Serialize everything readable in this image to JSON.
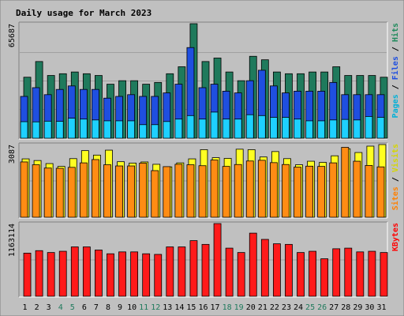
{
  "chart_data": {
    "type": "bar",
    "title": "Daily usage for March 2023",
    "days": [
      "1",
      "2",
      "3",
      "4",
      "5",
      "6",
      "7",
      "8",
      "9",
      "10",
      "11",
      "12",
      "13",
      "14",
      "15",
      "16",
      "17",
      "18",
      "19",
      "20",
      "21",
      "22",
      "23",
      "24",
      "25",
      "26",
      "27",
      "28",
      "29",
      "30",
      "31"
    ],
    "weekend_days": [
      "4",
      "5",
      "11",
      "12",
      "18",
      "19",
      "25",
      "26"
    ],
    "panels": [
      {
        "name": "hits-files-pages",
        "max_label": "65687",
        "ymax": 65687,
        "right_label_parts": [
          {
            "text": "Pages",
            "color": "#00b0d8"
          },
          {
            "text": " / ",
            "color": "#000000"
          },
          {
            "text": "Files",
            "color": "#1f4fe0"
          },
          {
            "text": " / ",
            "color": "#000000"
          },
          {
            "text": "Hits",
            "color": "#1f8a5c"
          }
        ],
        "series": [
          {
            "name": "Hits",
            "color": "#1f7a5c",
            "values": [
              35000,
              44000,
              36000,
              37000,
              38000,
              37000,
              36000,
              31000,
              33000,
              33000,
              31000,
              32000,
              37000,
              41000,
              65687,
              44000,
              46000,
              38000,
              33000,
              47000,
              45000,
              38000,
              37000,
              37000,
              38000,
              38000,
              41000,
              36000,
              36000,
              36000,
              35000
            ]
          },
          {
            "name": "Files",
            "color": "#1f4fe0",
            "values": [
              24000,
              29000,
              25000,
              28000,
              30000,
              28000,
              28000,
              23000,
              24000,
              25000,
              24000,
              24000,
              26000,
              31000,
              52000,
              29000,
              31000,
              27000,
              26000,
              33000,
              39000,
              30000,
              26000,
              27000,
              27000,
              27000,
              32000,
              25000,
              25000,
              25000,
              25000
            ]
          },
          {
            "name": "Pages",
            "color": "#1ed0ff",
            "values": [
              9500,
              9400,
              9800,
              9700,
              11500,
              11000,
              10500,
              10000,
              10000,
              10000,
              7800,
              7800,
              9600,
              11000,
              13000,
              11000,
              15000,
              11000,
              11000,
              13500,
              13000,
              12000,
              12000,
              11000,
              10000,
              10000,
              10500,
              10800,
              10500,
              12500,
              12000
            ]
          }
        ]
      },
      {
        "name": "visits-sites",
        "max_label": "3087",
        "ymax": 3087,
        "right_label_parts": [
          {
            "text": "Sites",
            "color": "#ff8000"
          },
          {
            "text": " / ",
            "color": "#000000"
          },
          {
            "text": "Visits",
            "color": "#d6d600"
          }
        ],
        "series": [
          {
            "name": "Visits",
            "color": "#ffff22",
            "values": [
              2480,
              2410,
              2280,
              2160,
              2490,
              2830,
              2640,
              2850,
              2360,
              2300,
              2350,
              2250,
              2140,
              2310,
              2480,
              2870,
              2530,
              2500,
              2890,
              2870,
              2560,
              2790,
              2490,
              2230,
              2380,
              2330,
              2610,
              2910,
              2750,
              3020,
              3087
            ]
          },
          {
            "name": "Sites",
            "color": "#ff8c14",
            "values": [
              2350,
              2230,
              2090,
              2080,
              2120,
              2310,
              2450,
              2230,
              2180,
              2180,
              2300,
              1980,
              2150,
              2250,
              2230,
              2190,
              2430,
              2160,
              2240,
              2390,
              2420,
              2320,
              2240,
              2130,
              2170,
              2160,
              2310,
              2970,
              2380,
              2200,
              2140
            ]
          }
        ]
      },
      {
        "name": "kbytes",
        "max_label": "1163114",
        "ymax": 1163114,
        "right_label_parts": [
          {
            "text": "KBytes",
            "color": "#ff0000"
          }
        ],
        "series": [
          {
            "name": "KBytes",
            "color": "#ff1a1a",
            "values": [
              690000,
              730000,
              700000,
              720000,
              790000,
              790000,
              740000,
              680000,
              710000,
              710000,
              680000,
              670000,
              790000,
              790000,
              890000,
              830000,
              1163114,
              770000,
              700000,
              1010000,
              910000,
              840000,
              830000,
              700000,
              720000,
              600000,
              760000,
              770000,
              710000,
              720000,
              700000
            ]
          }
        ]
      }
    ]
  },
  "colors": {
    "frame": "#c0c0c0",
    "panel_bg": "#c0c0c0",
    "title": "#0000c0",
    "day_weekday": "#000000",
    "day_weekend": "#1f7a5c"
  }
}
